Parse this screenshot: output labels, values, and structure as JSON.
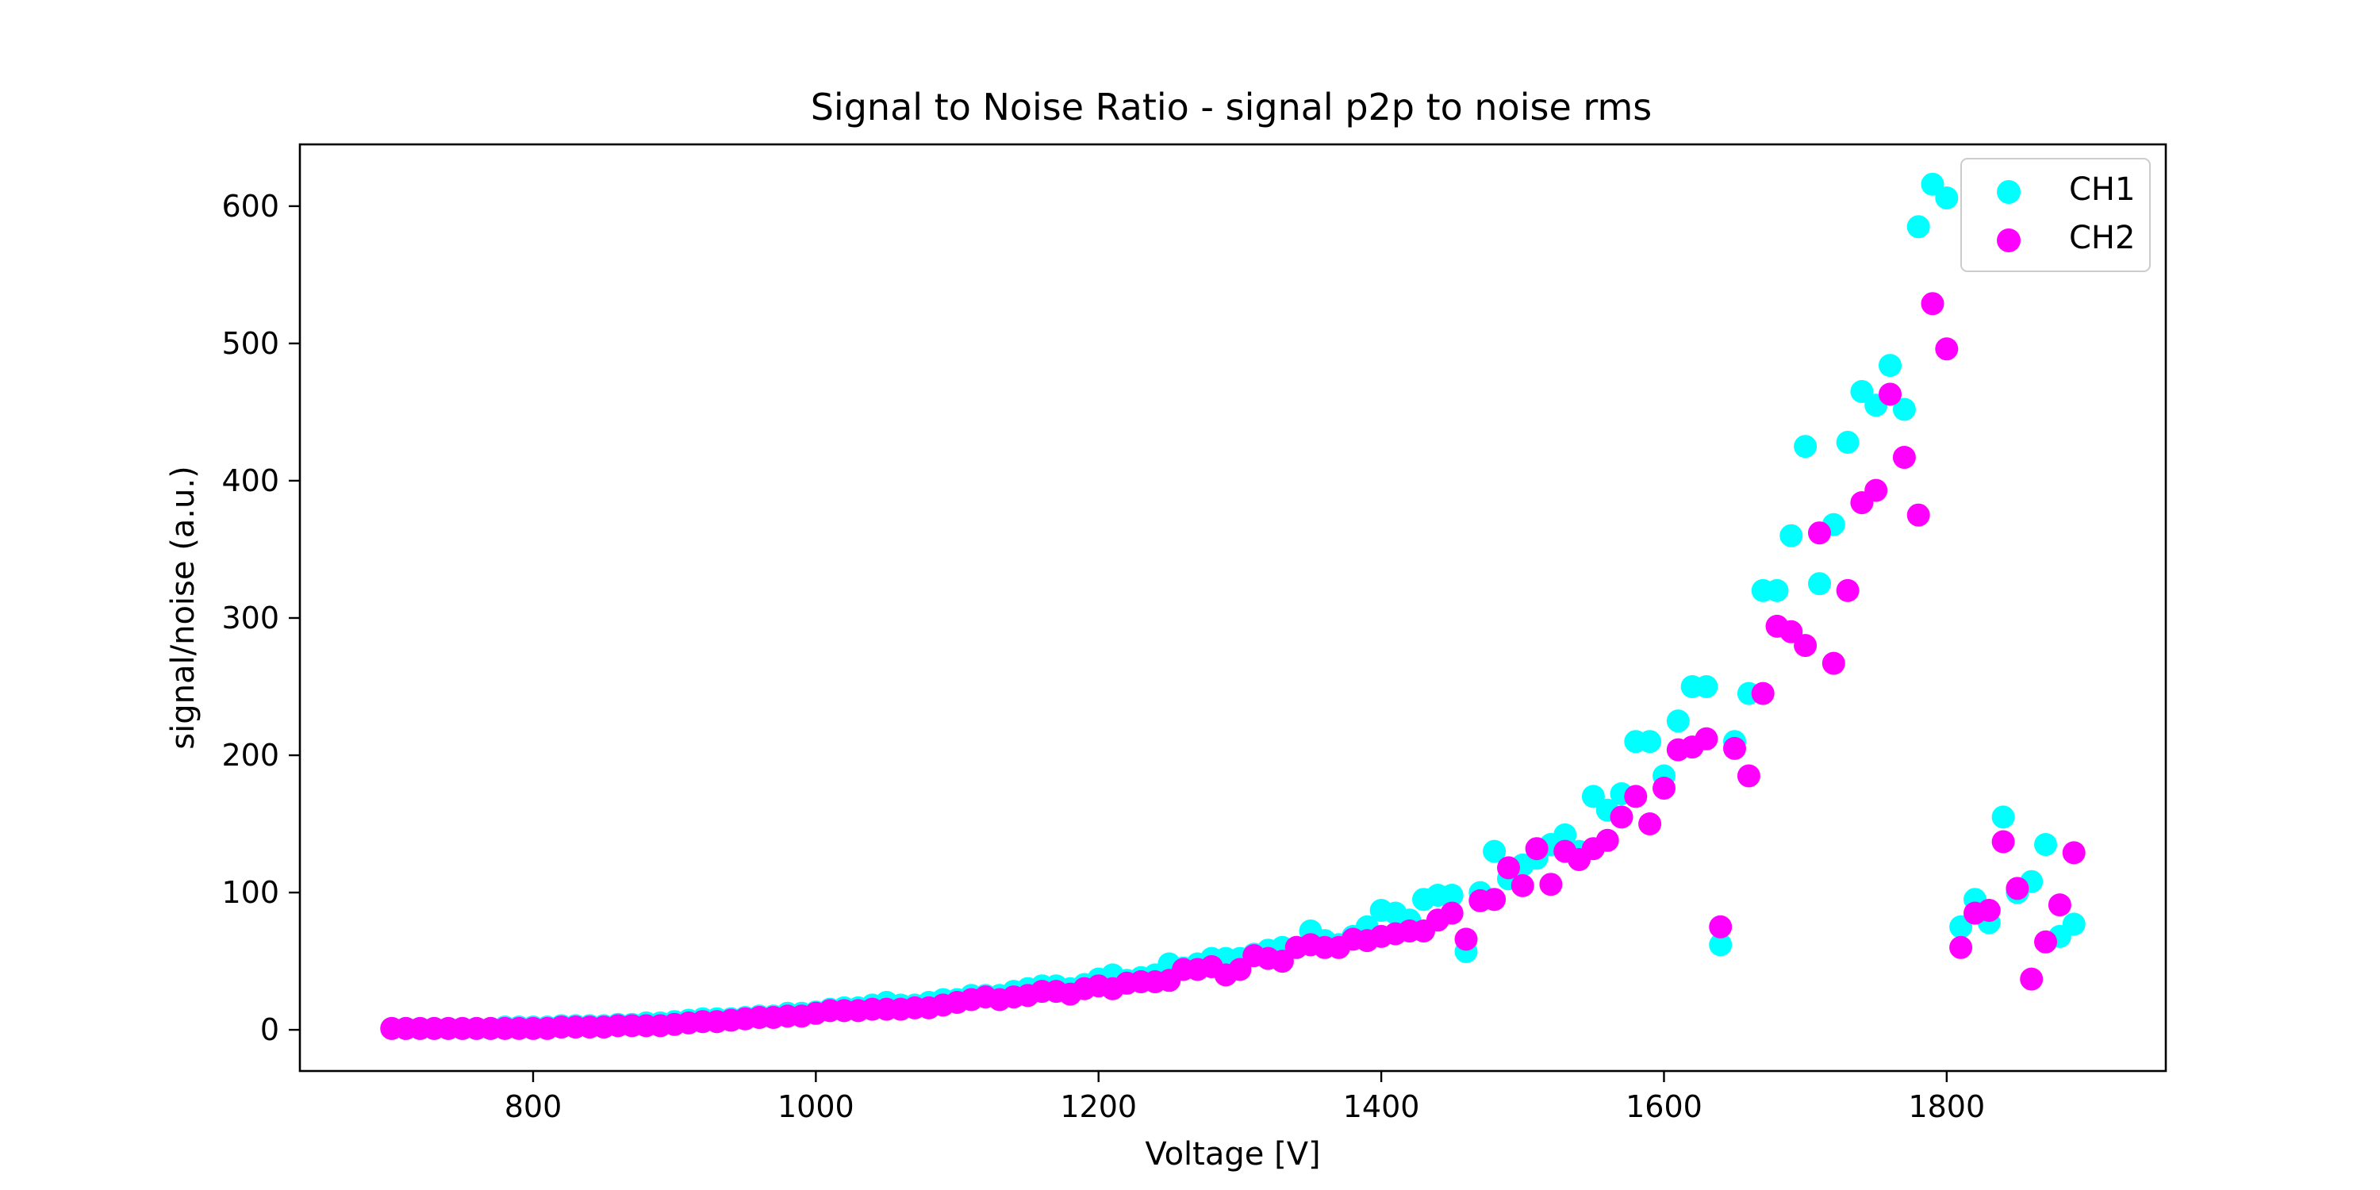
{
  "colors": {
    "CH1": "#00ffff",
    "CH2": "#ff00ff",
    "axis": "#000000",
    "legend_border": "#cccccc"
  },
  "chart_data": {
    "type": "scatter",
    "title": "Signal to Noise Ratio - signal p2p to noise rms",
    "xlabel": "Voltage [V]",
    "ylabel": "signal/noise (a.u.)",
    "xlim": [
      635,
      1955
    ],
    "ylim": [
      -30,
      645
    ],
    "xticks": [
      800,
      1000,
      1200,
      1400,
      1600,
      1800
    ],
    "yticks": [
      0,
      100,
      200,
      300,
      400,
      500,
      600
    ],
    "grid": false,
    "legend_position": "top-right",
    "series": [
      {
        "name": "CH1",
        "x": [
          700,
          710,
          720,
          730,
          740,
          750,
          760,
          770,
          780,
          790,
          800,
          810,
          820,
          830,
          840,
          850,
          860,
          870,
          880,
          890,
          900,
          910,
          920,
          930,
          940,
          950,
          960,
          970,
          980,
          990,
          1000,
          1010,
          1020,
          1030,
          1040,
          1050,
          1060,
          1070,
          1080,
          1090,
          1100,
          1110,
          1120,
          1130,
          1140,
          1150,
          1160,
          1170,
          1180,
          1190,
          1200,
          1210,
          1220,
          1230,
          1240,
          1250,
          1260,
          1270,
          1280,
          1290,
          1300,
          1310,
          1320,
          1330,
          1340,
          1350,
          1360,
          1370,
          1380,
          1390,
          1400,
          1410,
          1420,
          1430,
          1440,
          1450,
          1460,
          1470,
          1480,
          1490,
          1500,
          1510,
          1520,
          1530,
          1540,
          1550,
          1560,
          1570,
          1580,
          1590,
          1600,
          1610,
          1620,
          1630,
          1640,
          1650,
          1660,
          1670,
          1680,
          1690,
          1700,
          1710,
          1720,
          1730,
          1740,
          1750,
          1760,
          1770,
          1780,
          1790,
          1800,
          1810,
          1820,
          1830,
          1840,
          1850,
          1860,
          1870,
          1880,
          1890
        ],
        "y": [
          1,
          1,
          1,
          1,
          1,
          1,
          1,
          1,
          2,
          2,
          2,
          2,
          3,
          3,
          3,
          3,
          4,
          4,
          5,
          5,
          6,
          7,
          8,
          8,
          8,
          9,
          10,
          10,
          12,
          12,
          13,
          15,
          16,
          16,
          18,
          20,
          18,
          18,
          20,
          22,
          22,
          25,
          25,
          25,
          28,
          30,
          32,
          32,
          30,
          33,
          37,
          40,
          36,
          38,
          40,
          48,
          45,
          48,
          52,
          52,
          52,
          55,
          58,
          60,
          60,
          72,
          65,
          62,
          68,
          75,
          87,
          85,
          80,
          95,
          98,
          98,
          57,
          100,
          130,
          110,
          120,
          125,
          135,
          142,
          130,
          170,
          160,
          172,
          210,
          210,
          185,
          225,
          250,
          250,
          62,
          210,
          245,
          320,
          320,
          360,
          425,
          325,
          368,
          428,
          465,
          455,
          484,
          452,
          585,
          616,
          606,
          75,
          95,
          78,
          155,
          100,
          108,
          135,
          68,
          77
        ]
      },
      {
        "name": "CH2",
        "x": [
          700,
          710,
          720,
          730,
          740,
          750,
          760,
          770,
          780,
          790,
          800,
          810,
          820,
          830,
          840,
          850,
          860,
          870,
          880,
          890,
          900,
          910,
          920,
          930,
          940,
          950,
          960,
          970,
          980,
          990,
          1000,
          1010,
          1020,
          1030,
          1040,
          1050,
          1060,
          1070,
          1080,
          1090,
          1100,
          1110,
          1120,
          1130,
          1140,
          1150,
          1160,
          1170,
          1180,
          1190,
          1200,
          1210,
          1220,
          1230,
          1240,
          1250,
          1260,
          1270,
          1280,
          1290,
          1300,
          1310,
          1320,
          1330,
          1340,
          1350,
          1360,
          1370,
          1380,
          1390,
          1400,
          1410,
          1420,
          1430,
          1440,
          1450,
          1460,
          1470,
          1480,
          1490,
          1500,
          1510,
          1520,
          1530,
          1540,
          1550,
          1560,
          1570,
          1580,
          1590,
          1600,
          1610,
          1620,
          1630,
          1640,
          1650,
          1660,
          1670,
          1680,
          1690,
          1700,
          1710,
          1720,
          1730,
          1740,
          1750,
          1760,
          1770,
          1780,
          1790,
          1800,
          1810,
          1820,
          1830,
          1840,
          1850,
          1860,
          1870,
          1880,
          1890
        ],
        "y": [
          1,
          1,
          1,
          1,
          1,
          1,
          1,
          1,
          1,
          1,
          1,
          1,
          2,
          2,
          2,
          2,
          3,
          3,
          3,
          3,
          4,
          5,
          6,
          6,
          7,
          8,
          9,
          9,
          10,
          10,
          12,
          14,
          14,
          14,
          15,
          15,
          15,
          16,
          16,
          18,
          20,
          22,
          24,
          22,
          24,
          25,
          28,
          28,
          26,
          30,
          32,
          30,
          34,
          35,
          35,
          36,
          44,
          44,
          46,
          40,
          44,
          54,
          52,
          50,
          60,
          62,
          60,
          60,
          66,
          65,
          68,
          70,
          72,
          72,
          80,
          85,
          66,
          94,
          95,
          118,
          105,
          132,
          106,
          130,
          124,
          132,
          138,
          155,
          170,
          150,
          176,
          204,
          206,
          212,
          75,
          205,
          185,
          245,
          294,
          290,
          280,
          362,
          267,
          320,
          384,
          393,
          463,
          417,
          375,
          529,
          496,
          60,
          85,
          87,
          137,
          103,
          37,
          64,
          91,
          129
        ]
      }
    ]
  }
}
